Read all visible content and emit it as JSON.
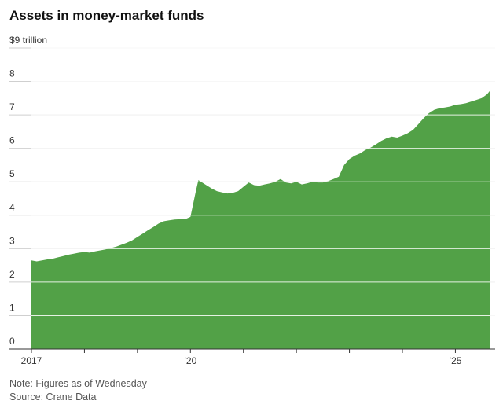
{
  "title": "Assets in money-market funds",
  "footer": {
    "note": "Note: Figures as of Wednesday",
    "source": "Source: Crane Data"
  },
  "chart_data": {
    "type": "area",
    "title": "Assets in money-market funds",
    "ylabel": "$ trillion",
    "unit_label": "$9 trillion",
    "ylim": [
      0,
      9
    ],
    "xlim": [
      2017.0,
      2025.75
    ],
    "y_ticks": [
      0,
      1,
      2,
      3,
      4,
      5,
      6,
      7,
      8,
      9
    ],
    "y_tick_labels": [
      "0",
      "1",
      "2",
      "3",
      "4",
      "5",
      "6",
      "7",
      "8",
      "$9 trillion"
    ],
    "x_ticks": [
      2017,
      2018,
      2019,
      2020,
      2021,
      2022,
      2023,
      2024,
      2025
    ],
    "x_tick_labels": [
      "2017",
      "",
      "",
      "’20",
      "",
      "",
      "",
      "",
      "’25"
    ],
    "grid": true,
    "fill_color": "#52a147",
    "series": [
      {
        "name": "Assets",
        "x": [
          2017.0,
          2017.1,
          2017.2,
          2017.3,
          2017.4,
          2017.5,
          2017.6,
          2017.7,
          2017.8,
          2017.9,
          2018.0,
          2018.1,
          2018.2,
          2018.3,
          2018.4,
          2018.5,
          2018.6,
          2018.7,
          2018.8,
          2018.9,
          2019.0,
          2019.1,
          2019.2,
          2019.3,
          2019.4,
          2019.5,
          2019.6,
          2019.7,
          2019.8,
          2019.9,
          2020.0,
          2020.1,
          2020.15,
          2020.2,
          2020.3,
          2020.4,
          2020.5,
          2020.6,
          2020.7,
          2020.8,
          2020.9,
          2021.0,
          2021.1,
          2021.2,
          2021.3,
          2021.4,
          2021.5,
          2021.6,
          2021.7,
          2021.8,
          2021.9,
          2022.0,
          2022.1,
          2022.2,
          2022.3,
          2022.4,
          2022.5,
          2022.6,
          2022.7,
          2022.8,
          2022.9,
          2023.0,
          2023.1,
          2023.2,
          2023.3,
          2023.4,
          2023.5,
          2023.6,
          2023.7,
          2023.8,
          2023.9,
          2024.0,
          2024.1,
          2024.2,
          2024.3,
          2024.4,
          2024.5,
          2024.6,
          2024.7,
          2024.8,
          2024.9,
          2025.0,
          2025.1,
          2025.2,
          2025.3,
          2025.4,
          2025.5,
          2025.6,
          2025.65
        ],
        "values": [
          2.65,
          2.62,
          2.65,
          2.68,
          2.7,
          2.74,
          2.78,
          2.82,
          2.85,
          2.88,
          2.9,
          2.88,
          2.92,
          2.95,
          2.98,
          3.02,
          3.06,
          3.12,
          3.18,
          3.25,
          3.35,
          3.45,
          3.55,
          3.65,
          3.75,
          3.82,
          3.85,
          3.87,
          3.88,
          3.88,
          3.95,
          4.7,
          5.05,
          5.0,
          4.9,
          4.8,
          4.72,
          4.68,
          4.65,
          4.67,
          4.72,
          4.85,
          4.98,
          4.9,
          4.88,
          4.92,
          4.95,
          5.0,
          5.08,
          4.98,
          4.95,
          5.0,
          4.92,
          4.95,
          5.0,
          4.98,
          4.98,
          5.02,
          5.08,
          5.15,
          5.5,
          5.68,
          5.78,
          5.85,
          5.95,
          6.02,
          6.12,
          6.22,
          6.3,
          6.35,
          6.32,
          6.38,
          6.45,
          6.55,
          6.72,
          6.9,
          7.05,
          7.15,
          7.2,
          7.22,
          7.25,
          7.3,
          7.32,
          7.35,
          7.4,
          7.45,
          7.5,
          7.62,
          7.72
        ]
      }
    ]
  }
}
